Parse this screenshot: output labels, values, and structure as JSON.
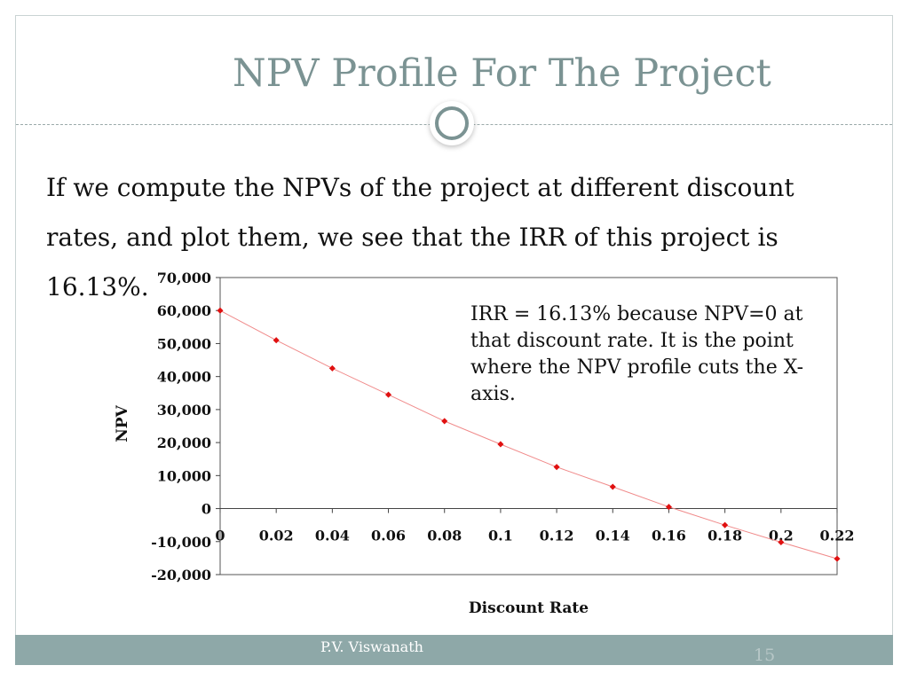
{
  "slide": {
    "title": "NPV Profile For The Project",
    "body": "If we compute the NPVs of the project at different discount rates, and plot them, we see that the IRR of this project is 16.13%.",
    "annotation": "IRR = 16.13% because NPV=0 at that discount rate.  It is the point where the NPV profile cuts the X-axis.",
    "footer_author": "P.V. Viswanath",
    "page_number": "15"
  },
  "colors": {
    "title": "#7b9393",
    "footer": "#8ea8a8",
    "series": "#e01010"
  },
  "chart_data": {
    "type": "scatter",
    "xlabel": "Discount Rate",
    "ylabel": "NPV",
    "xlim": [
      0,
      0.22
    ],
    "ylim": [
      -20000,
      70000
    ],
    "x_ticks": [
      "0",
      "0.02",
      "0.04",
      "0.06",
      "0.08",
      "0.1",
      "0.12",
      "0.14",
      "0.16",
      "0.18",
      "0.2",
      "0.22"
    ],
    "y_ticks": [
      "70,000",
      "60,000",
      "50,000",
      "40,000",
      "30,000",
      "20,000",
      "10,000",
      "0",
      "-10,000",
      "-20,000"
    ],
    "series": [
      {
        "x": [
          0,
          0.02,
          0.04,
          0.06,
          0.08,
          0.1,
          0.12,
          0.14,
          0.16,
          0.18,
          0.2,
          0.22
        ],
        "values": [
          60000,
          51000,
          42500,
          34500,
          26500,
          19500,
          12600,
          6600,
          500,
          -5000,
          -10200,
          -15200
        ]
      }
    ],
    "trendline": true,
    "grid": false,
    "legend": "none"
  }
}
